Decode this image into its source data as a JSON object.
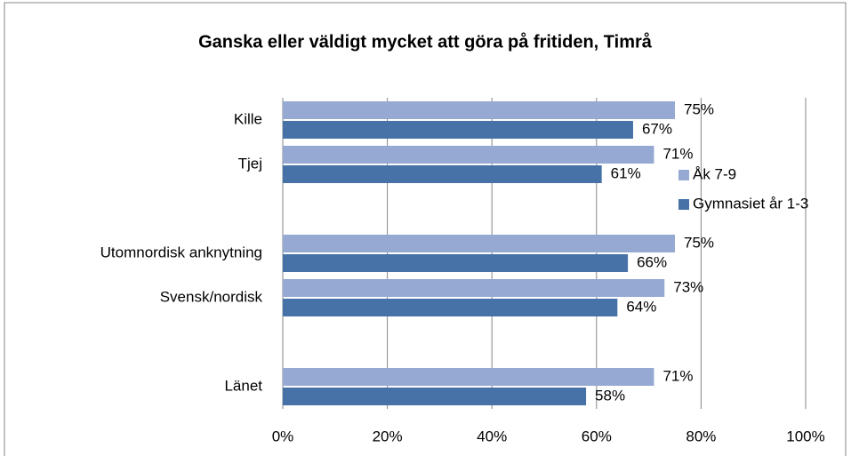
{
  "chart_data": {
    "type": "barh",
    "title": "Ganska eller väldigt mycket att göra på fritiden, Timrå",
    "categories": [
      "Kille",
      "Tjej",
      null,
      "Utomnordisk anknytning",
      "Svensk/nordisk",
      null,
      "Länet"
    ],
    "series": [
      {
        "name": "Åk 7-9",
        "color": "#95a9d3",
        "values": [
          75,
          71,
          null,
          75,
          73,
          null,
          71
        ],
        "value_labels": [
          "75%",
          "71%",
          null,
          "75%",
          "73%",
          null,
          "71%"
        ]
      },
      {
        "name": "Gymnasiet år 1-3",
        "color": "#4672a8",
        "values": [
          67,
          61,
          null,
          66,
          64,
          null,
          58
        ],
        "value_labels": [
          "67%",
          "61%",
          null,
          "66%",
          "64%",
          null,
          "58%"
        ]
      }
    ],
    "xlim": [
      0,
      100
    ],
    "xticks": [
      {
        "value": 0,
        "label": "0%"
      },
      {
        "value": 20,
        "label": "20%"
      },
      {
        "value": 40,
        "label": "40%"
      },
      {
        "value": 60,
        "label": "60%"
      },
      {
        "value": 80,
        "label": "80%"
      },
      {
        "value": 100,
        "label": "100%"
      }
    ],
    "grid": true,
    "legend": "right"
  }
}
